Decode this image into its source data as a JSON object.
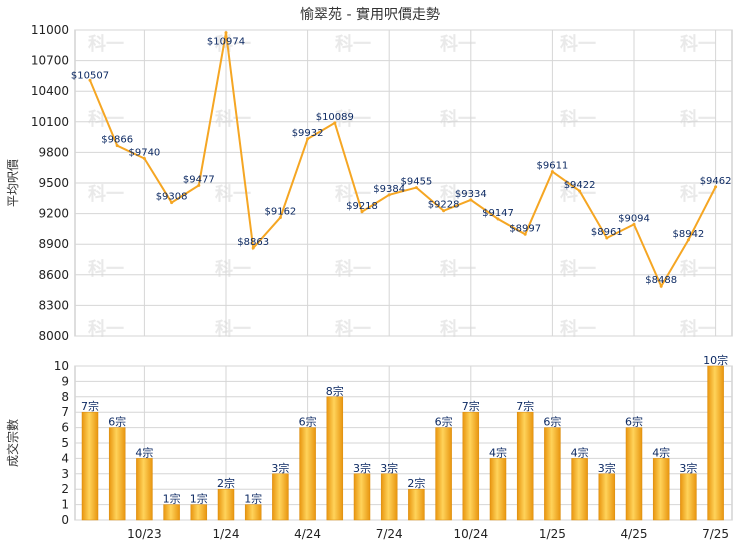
{
  "chart_data": [
    {
      "type": "line",
      "title": "愉翠苑 - 實用呎價走勢",
      "ylabel": "平均呎價",
      "ylim": [
        8000,
        11000
      ],
      "yticks": [
        8000,
        8300,
        8600,
        8900,
        9200,
        9500,
        9800,
        10100,
        10400,
        10700,
        11000
      ],
      "color": "#f5a623",
      "values": [
        10507,
        9866,
        9740,
        9308,
        9477,
        10974,
        8863,
        9162,
        9932,
        10089,
        9218,
        9384,
        9455,
        9228,
        9334,
        9147,
        8997,
        9611,
        9422,
        8961,
        9094,
        8488,
        8942,
        9462
      ],
      "labels": [
        "$10507",
        "$9866",
        "$9740",
        "$9308",
        "$9477",
        "$10974",
        "$8863",
        "$9162",
        "$9932",
        "$10089",
        "$9218",
        "$9384",
        "$9455",
        "$9228",
        "$9334",
        "$9147",
        "$8997",
        "$9611",
        "$9422",
        "$8961",
        "$9094",
        "$8488",
        "$8942",
        "$9462"
      ]
    },
    {
      "type": "bar",
      "ylabel": "成交宗數",
      "ylim": [
        0,
        10
      ],
      "yticks": [
        0,
        1,
        2,
        3,
        4,
        5,
        6,
        7,
        8,
        9,
        10
      ],
      "color": "#f5a623",
      "values": [
        7,
        6,
        4,
        1,
        1,
        2,
        1,
        3,
        6,
        8,
        3,
        3,
        2,
        6,
        7,
        4,
        7,
        6,
        4,
        3,
        6,
        4,
        3,
        10
      ],
      "labels": [
        "7宗",
        "6宗",
        "4宗",
        "1宗",
        "1宗",
        "2宗",
        "1宗",
        "3宗",
        "6宗",
        "8宗",
        "3宗",
        "3宗",
        "2宗",
        "6宗",
        "7宗",
        "4宗",
        "7宗",
        "6宗",
        "4宗",
        "3宗",
        "6宗",
        "4宗",
        "3宗",
        "10宗"
      ],
      "xticks": [
        {
          "index": 2,
          "label": "10/23"
        },
        {
          "index": 5,
          "label": "1/24"
        },
        {
          "index": 8,
          "label": "4/24"
        },
        {
          "index": 11,
          "label": "7/24"
        },
        {
          "index": 14,
          "label": "10/24"
        },
        {
          "index": 17,
          "label": "1/25"
        },
        {
          "index": 20,
          "label": "4/25"
        },
        {
          "index": 23,
          "label": "7/25"
        }
      ]
    }
  ],
  "watermark": "科一"
}
